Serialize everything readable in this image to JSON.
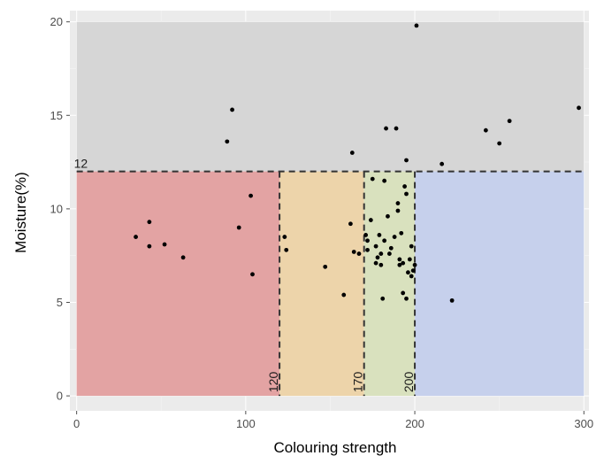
{
  "chart_data": {
    "type": "scatter",
    "xlabel": "Colouring strength",
    "ylabel": "Moisture(%)",
    "xlim": [
      -4,
      303
    ],
    "ylim": [
      -0.8,
      20.6
    ],
    "xticks": [
      0,
      100,
      200,
      300
    ],
    "yticks": [
      0,
      5,
      10,
      15,
      20
    ],
    "grid": true,
    "panel_color": "#ebebeb",
    "regions": [
      {
        "x0": 0,
        "x1": 300,
        "y0": 12,
        "y1": 20,
        "color": "#d6d6d6"
      },
      {
        "x0": 0,
        "x1": 120,
        "y0": 0,
        "y1": 12,
        "color": "#e3a3a3"
      },
      {
        "x0": 120,
        "x1": 170,
        "y0": 0,
        "y1": 12,
        "color": "#edd4aa"
      },
      {
        "x0": 170,
        "x1": 200,
        "y0": 0,
        "y1": 12,
        "color": "#d9e1be"
      },
      {
        "x0": 200,
        "x1": 300,
        "y0": 0,
        "y1": 12,
        "color": "#c6d0ec"
      }
    ],
    "threshold_line": {
      "y": 12,
      "label": "12"
    },
    "vertical_lines": [
      {
        "x": 120,
        "label": "120"
      },
      {
        "x": 170,
        "label": "170"
      },
      {
        "x": 200,
        "label": "200"
      }
    ],
    "points": [
      {
        "x": 35,
        "y": 8.5
      },
      {
        "x": 43,
        "y": 9.3
      },
      {
        "x": 43,
        "y": 8.0
      },
      {
        "x": 52,
        "y": 8.1
      },
      {
        "x": 63,
        "y": 7.4
      },
      {
        "x": 89,
        "y": 13.6
      },
      {
        "x": 92,
        "y": 15.3
      },
      {
        "x": 96,
        "y": 9.0
      },
      {
        "x": 103,
        "y": 10.7
      },
      {
        "x": 104,
        "y": 6.5
      },
      {
        "x": 123,
        "y": 8.5
      },
      {
        "x": 124,
        "y": 7.8
      },
      {
        "x": 147,
        "y": 6.9
      },
      {
        "x": 158,
        "y": 5.4
      },
      {
        "x": 162,
        "y": 9.2
      },
      {
        "x": 163,
        "y": 13.0
      },
      {
        "x": 164,
        "y": 7.7
      },
      {
        "x": 167,
        "y": 7.6
      },
      {
        "x": 171,
        "y": 8.6
      },
      {
        "x": 172,
        "y": 8.3
      },
      {
        "x": 172,
        "y": 7.8
      },
      {
        "x": 174,
        "y": 9.4
      },
      {
        "x": 175,
        "y": 11.6
      },
      {
        "x": 177,
        "y": 8.0
      },
      {
        "x": 177,
        "y": 7.1
      },
      {
        "x": 178,
        "y": 7.4
      },
      {
        "x": 179,
        "y": 8.6
      },
      {
        "x": 180,
        "y": 7.6
      },
      {
        "x": 180,
        "y": 7.0
      },
      {
        "x": 181,
        "y": 5.2
      },
      {
        "x": 182,
        "y": 11.5
      },
      {
        "x": 182,
        "y": 8.3
      },
      {
        "x": 183,
        "y": 14.3
      },
      {
        "x": 184,
        "y": 9.6
      },
      {
        "x": 185,
        "y": 7.6
      },
      {
        "x": 186,
        "y": 7.9
      },
      {
        "x": 188,
        "y": 8.5
      },
      {
        "x": 189,
        "y": 14.3
      },
      {
        "x": 190,
        "y": 10.3
      },
      {
        "x": 190,
        "y": 9.9
      },
      {
        "x": 191,
        "y": 7.3
      },
      {
        "x": 191,
        "y": 7.0
      },
      {
        "x": 192,
        "y": 8.7
      },
      {
        "x": 193,
        "y": 7.1
      },
      {
        "x": 193,
        "y": 5.5
      },
      {
        "x": 194,
        "y": 11.2
      },
      {
        "x": 195,
        "y": 12.6
      },
      {
        "x": 195,
        "y": 10.8
      },
      {
        "x": 195,
        "y": 5.2
      },
      {
        "x": 196,
        "y": 6.6
      },
      {
        "x": 197,
        "y": 7.3
      },
      {
        "x": 198,
        "y": 8.0
      },
      {
        "x": 198,
        "y": 6.4
      },
      {
        "x": 199,
        "y": 6.7
      },
      {
        "x": 200,
        "y": 7.0
      },
      {
        "x": 201,
        "y": 19.8
      },
      {
        "x": 216,
        "y": 12.4
      },
      {
        "x": 222,
        "y": 5.1
      },
      {
        "x": 242,
        "y": 14.2
      },
      {
        "x": 250,
        "y": 13.5
      },
      {
        "x": 256,
        "y": 14.7
      },
      {
        "x": 297,
        "y": 15.4
      }
    ]
  }
}
